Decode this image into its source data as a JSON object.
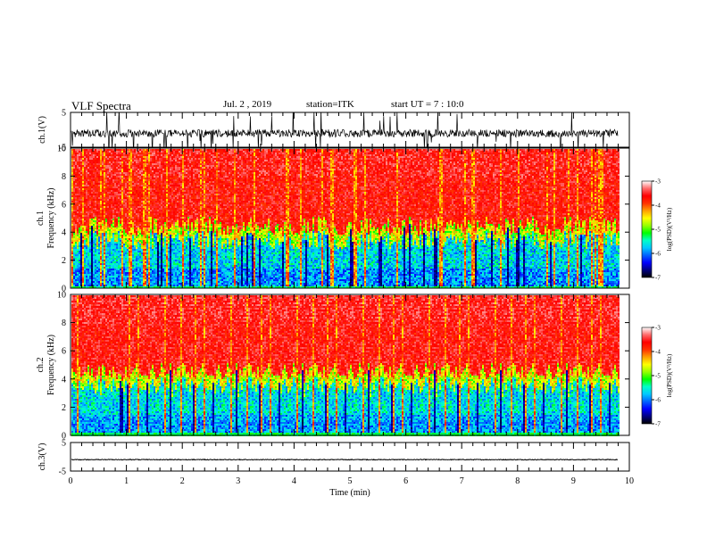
{
  "header": {
    "title": "VLF Spectra",
    "date": "Jul. 2 , 2019",
    "station": "station=ITK",
    "start": "start UT =  7 : 10:0"
  },
  "chart_data": [
    {
      "type": "line",
      "panel": "ch1-waveform",
      "ylabel": "ch.1(V)",
      "yticks": [
        "5",
        "-5"
      ],
      "ylim": [
        -5,
        5
      ],
      "xlim": [
        0,
        10
      ],
      "trace_end_min": 9.8,
      "baseline_v": -1,
      "color": "#000000"
    },
    {
      "type": "heatmap",
      "panel": "ch1-spectrogram",
      "ylabel": "Frequency  (kHz)",
      "channel_label": "ch.1",
      "yticks": [
        "0",
        "2",
        "4",
        "6",
        "8",
        "10"
      ],
      "ylim": [
        0,
        10
      ],
      "xlim": [
        0,
        10
      ],
      "data_end_min": 9.8,
      "typical_transition_khz": 4.5,
      "colorbar": {
        "label": "log(PSD)(V²/Hz)",
        "ticks": [
          "-3",
          "-4",
          "-5",
          "-6",
          "-7"
        ],
        "range": [
          -7,
          -3
        ]
      }
    },
    {
      "type": "heatmap",
      "panel": "ch2-spectrogram",
      "ylabel": "Frequency  (kHz)",
      "channel_label": "ch.2",
      "yticks": [
        "0",
        "2",
        "4",
        "6",
        "8",
        "10"
      ],
      "ylim": [
        0,
        10
      ],
      "xlim": [
        0,
        10
      ],
      "data_end_min": 9.8,
      "typical_transition_khz": 4.5,
      "colorbar": {
        "label": "log(PSD)(V²/Hz)",
        "ticks": [
          "-3",
          "-4",
          "-5",
          "-6",
          "-7"
        ],
        "range": [
          -7,
          -3
        ]
      }
    },
    {
      "type": "line",
      "panel": "ch3-waveform",
      "ylabel": "ch.3(V)",
      "yticks": [
        "5",
        "-5"
      ],
      "ylim": [
        -5,
        5
      ],
      "xlim": [
        0,
        10
      ],
      "trace_end_min": 9.8,
      "baseline_v": -1,
      "color": "#000000"
    }
  ],
  "xaxis": {
    "label": "Time  (min)",
    "ticks": [
      "0",
      "1",
      "2",
      "3",
      "4",
      "5",
      "6",
      "7",
      "8",
      "9",
      "10"
    ]
  },
  "colormap": [
    "#000000",
    "#000080",
    "#0000ff",
    "#0064ff",
    "#00c8ff",
    "#00ffc8",
    "#00ff00",
    "#96ff00",
    "#ffff00",
    "#ffa000",
    "#ff3200",
    "#ff0000",
    "#ff6a6a",
    "#ffffff"
  ]
}
